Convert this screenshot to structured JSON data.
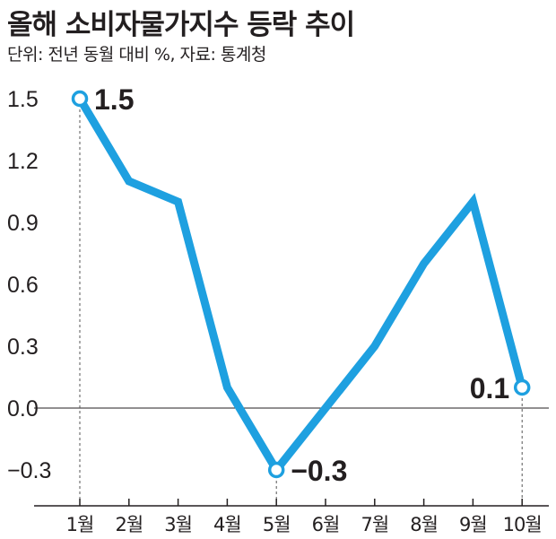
{
  "chart_data": {
    "type": "line",
    "title": "올해 소비자물가지수 등락 추이",
    "subtitle": "단위: 전년 동월 대비 %, 자료: 통계청",
    "categories": [
      "1월",
      "2월",
      "3월",
      "4월",
      "5월",
      "6월",
      "7월",
      "8월",
      "9월",
      "10월"
    ],
    "series": [
      {
        "values": [
          1.5,
          1.1,
          1.0,
          0.1,
          -0.3,
          0.0,
          0.3,
          0.7,
          1.0,
          0.1
        ],
        "color": "#1ea0e0"
      }
    ],
    "y_ticks": [
      "1.5",
      "1.2",
      "0.9",
      "0.6",
      "0.3",
      "0.0",
      "-0.3"
    ],
    "ylim": [
      -0.5,
      1.5
    ],
    "data_labels": [
      {
        "index": 0,
        "text": "1.5"
      },
      {
        "index": 4,
        "text": "-0.3"
      },
      {
        "index": 9,
        "text": "0.1"
      }
    ],
    "grid": false
  }
}
